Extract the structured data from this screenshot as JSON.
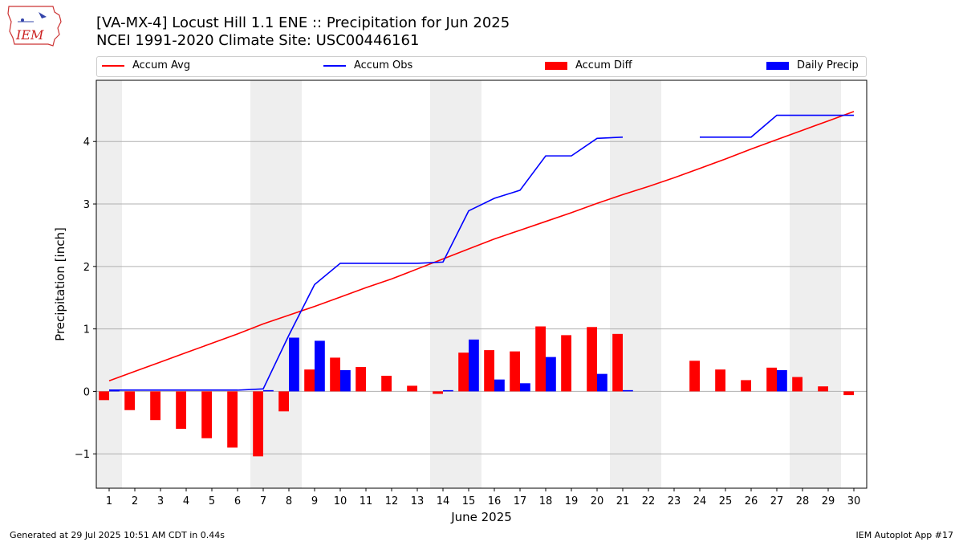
{
  "header": {
    "title_line1": "[VA-MX-4] Locust Hill 1.1 ENE :: Precipitation for Jun 2025",
    "title_line2": "NCEI 1991-2020 Climate Site: USC00446161",
    "logo_text": "IEM"
  },
  "footer": {
    "generated": "Generated at 29 Jul 2025 10:51 AM CDT in 0.44s",
    "app": "IEM Autoplot App #17"
  },
  "legend": {
    "accum_avg": "Accum Avg",
    "accum_obs": "Accum Obs",
    "accum_diff": "Accum Diff",
    "daily_precip": "Daily Precip"
  },
  "colors": {
    "avg": "#ff0000",
    "obs": "#0000ff",
    "diff": "#ff0000",
    "daily": "#0000ff",
    "weekend": "#eeeeee",
    "grid": "#b0b0b0"
  },
  "chart_data": {
    "type": "bar",
    "xlabel": "June 2025",
    "ylabel": "Precipitation [inch]",
    "xlim": [
      0.5,
      30.5
    ],
    "ylim": [
      -1.55,
      4.98
    ],
    "yticks": [
      -1,
      0,
      1,
      2,
      3,
      4
    ],
    "ytick_labels": [
      "−1",
      "0",
      "1",
      "2",
      "3",
      "4"
    ],
    "days": [
      1,
      2,
      3,
      4,
      5,
      6,
      7,
      8,
      9,
      10,
      11,
      12,
      13,
      14,
      15,
      16,
      17,
      18,
      19,
      20,
      21,
      22,
      23,
      24,
      25,
      26,
      27,
      28,
      29,
      30
    ],
    "weekend_bands": [
      [
        0.5,
        1.5
      ],
      [
        6.5,
        8.5
      ],
      [
        13.5,
        15.5
      ],
      [
        20.5,
        22.5
      ],
      [
        27.5,
        29.5
      ]
    ],
    "grid": "y",
    "series": [
      {
        "name": "Accum Avg",
        "kind": "line",
        "values": [
          0.17,
          0.32,
          0.47,
          0.62,
          0.77,
          0.92,
          1.08,
          1.22,
          1.36,
          1.51,
          1.66,
          1.8,
          1.96,
          2.12,
          2.28,
          2.44,
          2.58,
          2.72,
          2.86,
          3.01,
          3.15,
          3.28,
          3.42,
          3.57,
          3.72,
          3.88,
          4.03,
          4.18,
          4.33,
          4.48
        ]
      },
      {
        "name": "Accum Obs",
        "kind": "line",
        "values": [
          0.02,
          0.02,
          0.02,
          0.02,
          0.02,
          0.02,
          0.04,
          0.9,
          1.71,
          2.05,
          2.05,
          2.05,
          2.05,
          2.07,
          2.89,
          3.09,
          3.22,
          3.77,
          3.77,
          4.05,
          4.07,
          null,
          null,
          4.07,
          4.07,
          4.07,
          4.42,
          4.42,
          4.42,
          4.42
        ]
      },
      {
        "name": "Accum Diff",
        "kind": "bar",
        "values": [
          -0.14,
          -0.3,
          -0.46,
          -0.6,
          -0.75,
          -0.9,
          -1.04,
          -0.32,
          0.35,
          0.54,
          0.39,
          0.25,
          0.09,
          -0.04,
          0.62,
          0.66,
          0.64,
          1.04,
          0.9,
          1.03,
          0.92,
          null,
          null,
          0.49,
          0.35,
          0.18,
          0.38,
          0.23,
          0.08,
          -0.06
        ]
      },
      {
        "name": "Daily Precip",
        "kind": "bar",
        "values": [
          0.02,
          0.0,
          0.0,
          0.0,
          0.0,
          0.0,
          0.02,
          0.86,
          0.81,
          0.34,
          0.0,
          0.0,
          0.0,
          0.02,
          0.83,
          0.19,
          0.13,
          0.55,
          0.0,
          0.28,
          0.02,
          null,
          null,
          0.0,
          0.0,
          0.0,
          0.34,
          0.0,
          0.0,
          0.0
        ]
      }
    ]
  }
}
